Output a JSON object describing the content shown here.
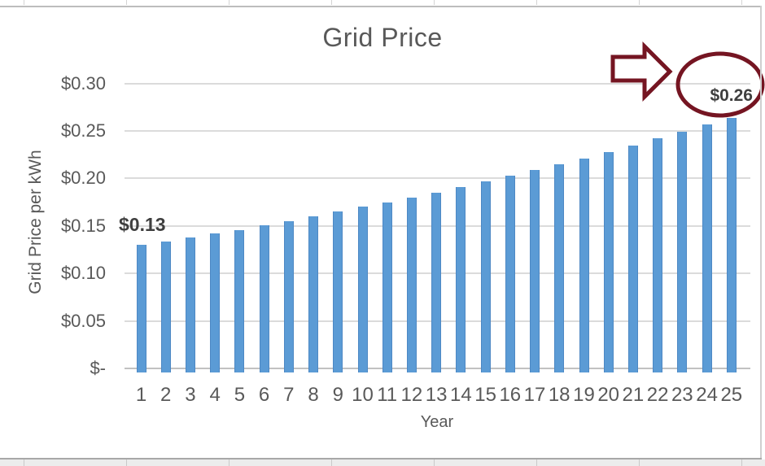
{
  "chart_data": {
    "type": "bar",
    "title": "Grid Price",
    "xlabel": "Year",
    "ylabel": "Grid Price per kWh",
    "categories": [
      "1",
      "2",
      "3",
      "4",
      "5",
      "6",
      "7",
      "8",
      "9",
      "10",
      "11",
      "12",
      "13",
      "14",
      "15",
      "16",
      "17",
      "18",
      "19",
      "20",
      "21",
      "22",
      "23",
      "24",
      "25"
    ],
    "values": [
      0.13,
      0.134,
      0.138,
      0.142,
      0.146,
      0.151,
      0.155,
      0.16,
      0.165,
      0.17,
      0.175,
      0.18,
      0.185,
      0.191,
      0.197,
      0.203,
      0.209,
      0.215,
      0.221,
      0.228,
      0.235,
      0.242,
      0.249,
      0.257,
      0.264
    ],
    "ylim": [
      0,
      0.3
    ],
    "ytick_step": 0.05,
    "ytick_labels": [
      "$-",
      "$0.05",
      "$0.10",
      "$0.15",
      "$0.20",
      "$0.25",
      "$0.30"
    ],
    "grid": true,
    "legend_position": "none",
    "bar_color": "#5b9bd5",
    "annotations": {
      "start_label": "$0.13",
      "end_label": "$0.26",
      "highlight_color": "#751522",
      "shapes": [
        "right-block-arrow",
        "ellipse-around-final-value"
      ]
    }
  }
}
